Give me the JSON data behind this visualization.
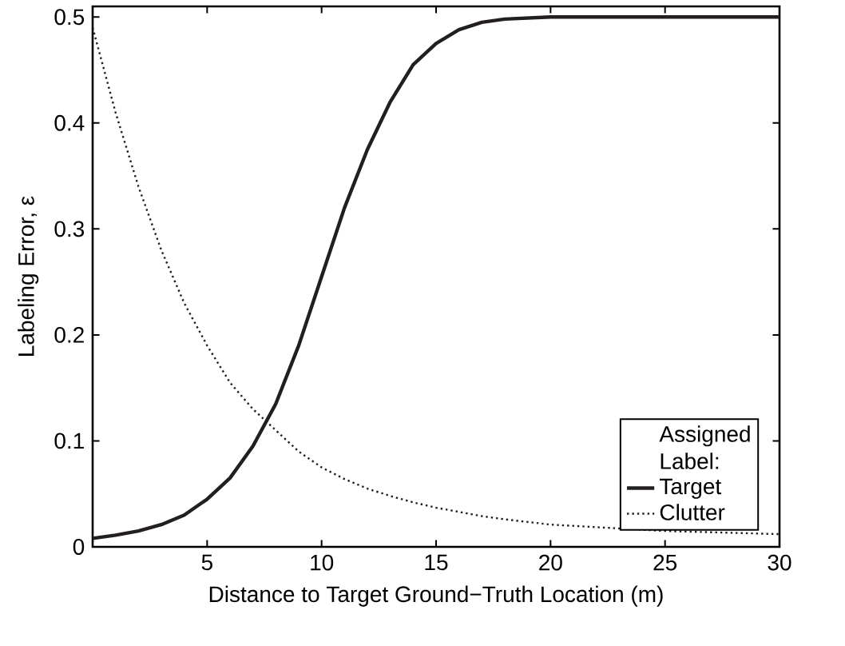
{
  "chart_data": {
    "type": "line",
    "xlabel": "Distance to Target Ground−Truth Location (m)",
    "ylabel": "Labeling Error, ε",
    "legend_title": "Assigned Label:",
    "legend": "bottom right",
    "grid": false,
    "xlim": [
      0,
      30
    ],
    "ylim": [
      0,
      0.51
    ],
    "xticks": [
      5,
      10,
      15,
      20,
      25,
      30
    ],
    "yticks": [
      0,
      0.1,
      0.2,
      0.3,
      0.4,
      0.5
    ],
    "x": [
      0,
      1,
      2,
      3,
      4,
      5,
      6,
      7,
      8,
      9,
      10,
      11,
      12,
      13,
      14,
      15,
      16,
      17,
      18,
      20,
      25,
      30
    ],
    "series": [
      {
        "name": "Target",
        "color": "#231f20",
        "line_style": "solid",
        "values": [
          0.008,
          0.011,
          0.015,
          0.021,
          0.03,
          0.045,
          0.065,
          0.095,
          0.135,
          0.19,
          0.255,
          0.32,
          0.375,
          0.42,
          0.455,
          0.475,
          0.488,
          0.495,
          0.498,
          0.5,
          0.5,
          0.5
        ]
      },
      {
        "name": "Clutter",
        "color": "#231f20",
        "line_style": "dotted",
        "values": [
          0.49,
          0.41,
          0.34,
          0.28,
          0.23,
          0.19,
          0.155,
          0.13,
          0.11,
          0.09,
          0.075,
          0.064,
          0.055,
          0.048,
          0.042,
          0.037,
          0.033,
          0.029,
          0.026,
          0.021,
          0.015,
          0.012
        ]
      }
    ]
  }
}
